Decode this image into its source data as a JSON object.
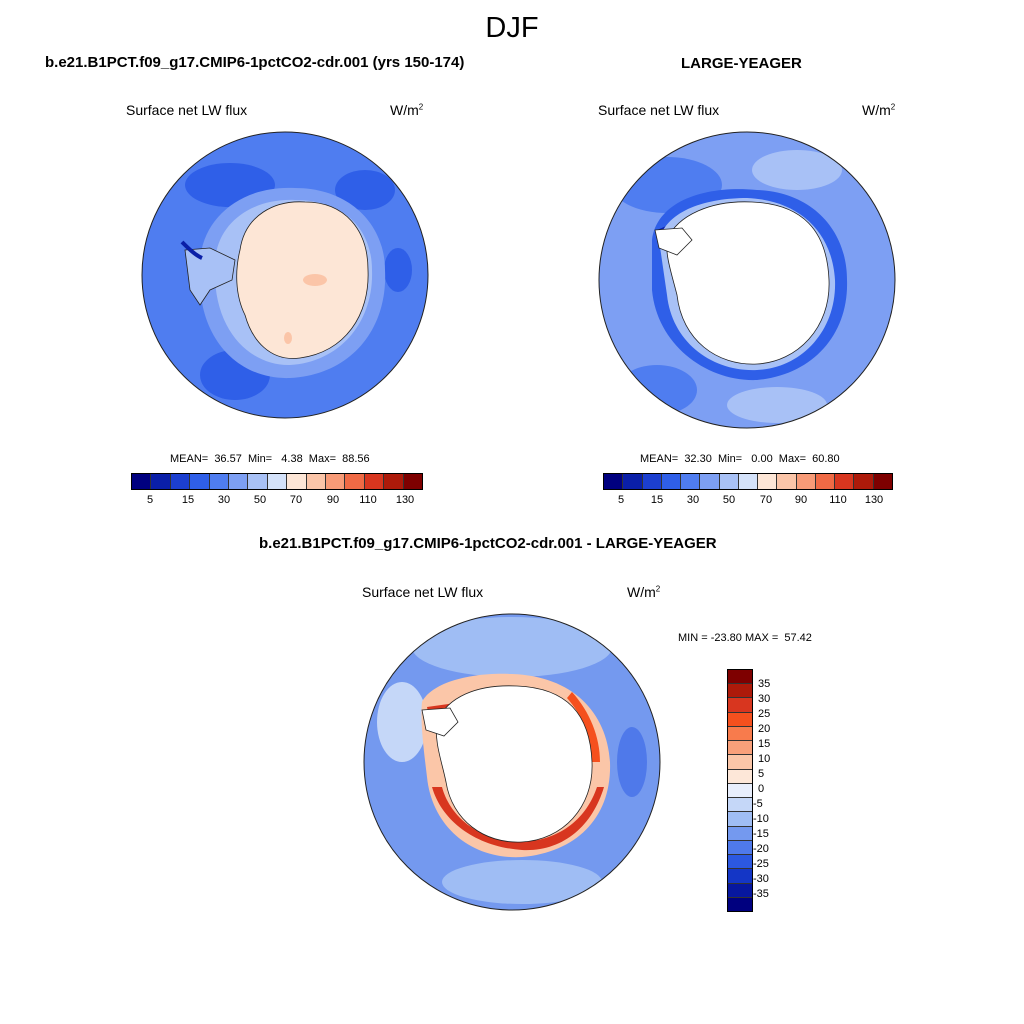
{
  "season": "DJF",
  "panel1": {
    "title": "b.e21.B1PCT.f09_g17.CMIP6-1pctCO2-cdr.001 (yrs 150-174)",
    "variable": "Surface net LW flux",
    "units": "W/m",
    "units_exp": "2",
    "stats": "MEAN=  36.57  Min=   4.38  Max=  88.56"
  },
  "panel2": {
    "title": "LARGE-YEAGER",
    "variable": "Surface net LW flux",
    "units": "W/m",
    "units_exp": "2",
    "stats": "MEAN=  32.30  Min=   0.00  Max=  60.80"
  },
  "panel3": {
    "title": "b.e21.B1PCT.f09_g17.CMIP6-1pctCO2-cdr.001 - LARGE-YEAGER",
    "variable": "Surface net LW flux",
    "units": "W/m",
    "units_exp": "2",
    "stats": "MIN = -23.80 MAX =  57.42"
  },
  "colorbar_abs": {
    "colors": [
      "#00007f",
      "#0a1fa8",
      "#1c3fd0",
      "#2f5fe8",
      "#4f7df0",
      "#7d9ff3",
      "#a8c1f6",
      "#d4e2fa",
      "#fde6d6",
      "#fbc5a8",
      "#f89b77",
      "#f06a45",
      "#d8361f",
      "#ad1a0a",
      "#7e0000"
    ],
    "tick_labels": [
      "5",
      "15",
      "30",
      "50",
      "70",
      "90",
      "110",
      "130"
    ]
  },
  "colorbar_diff": {
    "colors": [
      "#7e0000",
      "#ad1a0a",
      "#d8361f",
      "#f5501e",
      "#f87b4c",
      "#f9a07a",
      "#fbc6a8",
      "#fde7d8",
      "#e8eefc",
      "#c5d7f8",
      "#9fbdf4",
      "#7499ef",
      "#4f79ea",
      "#2c58e0",
      "#1436c6",
      "#07179f",
      "#00007f"
    ],
    "tick_labels": [
      "35",
      "30",
      "25",
      "20",
      "15",
      "10",
      "5",
      "0",
      "-5",
      "-10",
      "-15",
      "-20",
      "-25",
      "-30",
      "-35"
    ]
  }
}
